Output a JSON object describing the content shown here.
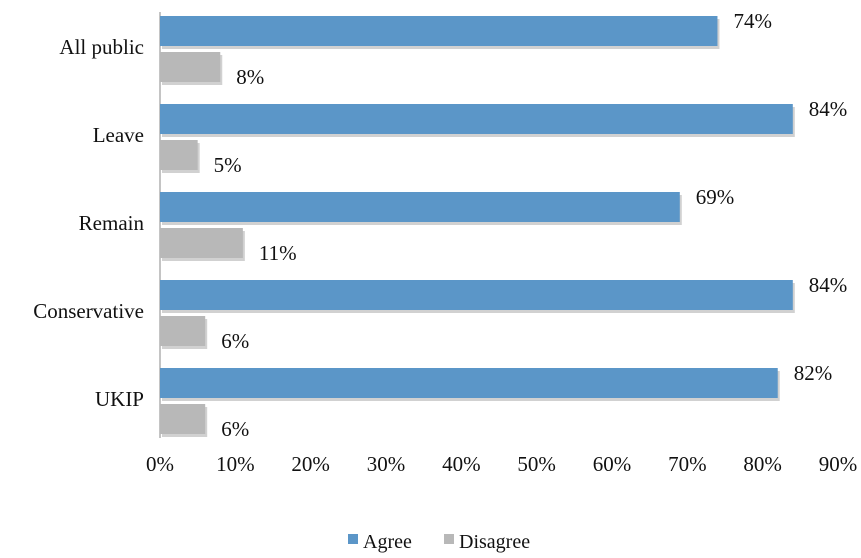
{
  "chart_data": {
    "type": "bar",
    "orientation": "horizontal",
    "categories": [
      "All public",
      "Leave",
      "Remain",
      "Conservative",
      "UKIP"
    ],
    "series": [
      {
        "name": "Agree",
        "values": [
          74,
          84,
          69,
          84,
          82
        ],
        "labels": [
          "74%",
          "84%",
          "69%",
          "84%",
          "82%"
        ],
        "color": "#5b96c8"
      },
      {
        "name": "Disagree",
        "values": [
          8,
          5,
          11,
          6,
          6
        ],
        "labels": [
          "8%",
          "5%",
          "11%",
          "6%",
          "6%"
        ],
        "color": "#b8b8b8"
      }
    ],
    "xlim": [
      0,
      90
    ],
    "xticks": [
      0,
      10,
      20,
      30,
      40,
      50,
      60,
      70,
      80,
      90
    ],
    "xtick_labels": [
      "0%",
      "10%",
      "20%",
      "30%",
      "40%",
      "50%",
      "60%",
      "70%",
      "80%",
      "90%"
    ],
    "grid": false,
    "legend_position": "bottom"
  }
}
